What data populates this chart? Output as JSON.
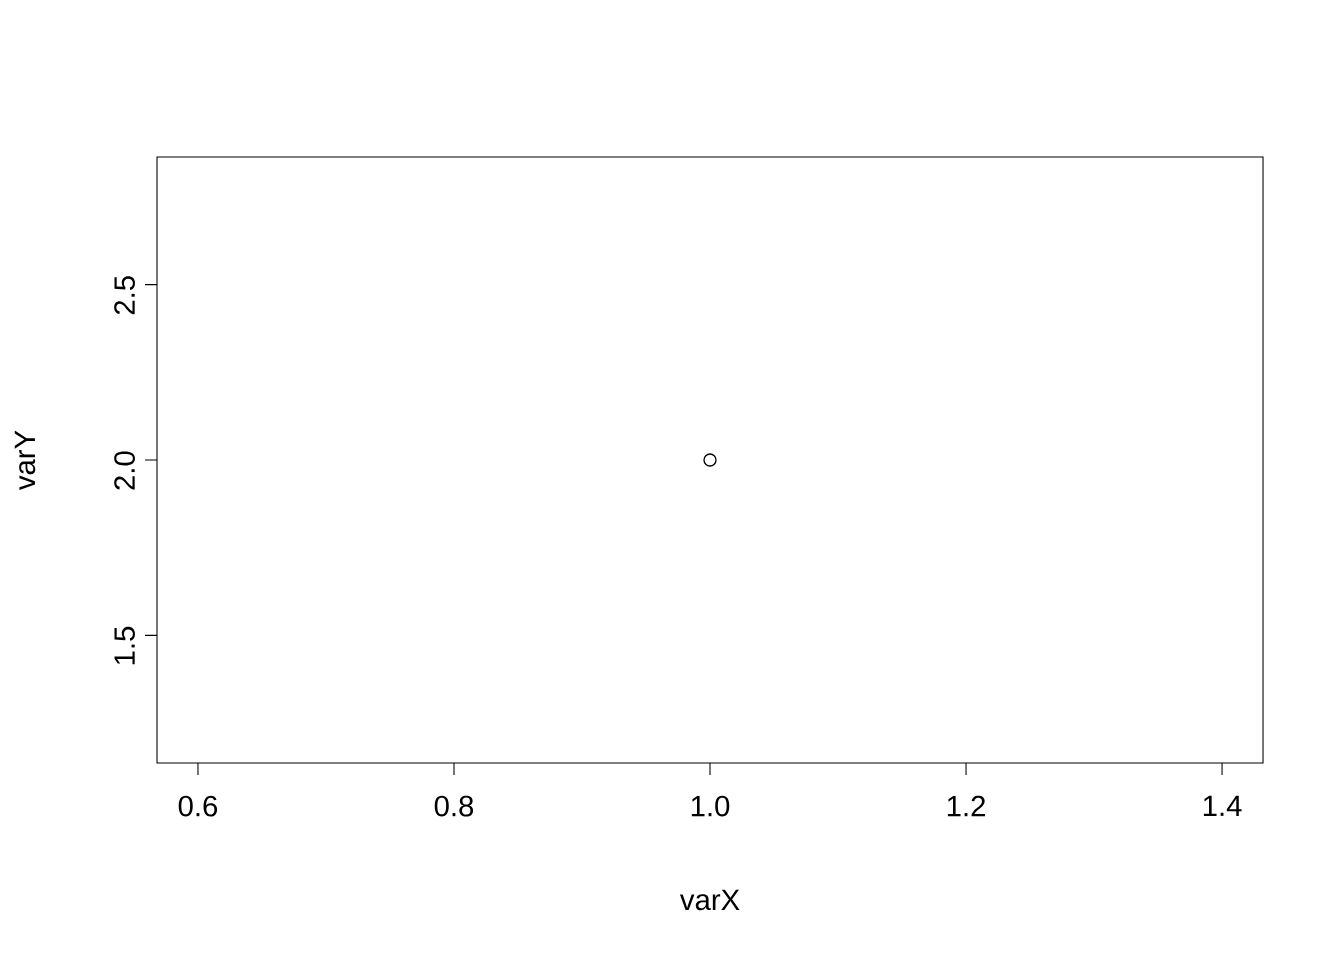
{
  "chart_data": {
    "type": "scatter",
    "xlabel": "varX",
    "ylabel": "varY",
    "x": [
      1
    ],
    "values": [
      2
    ],
    "color": "#000000",
    "marker": "circle",
    "xlim": [
      0.568,
      1.432
    ],
    "ylim": [
      1.136,
      2.864
    ],
    "xticks": [
      0.6,
      0.8,
      {
        "value": 1,
        "label": "1.0"
      },
      1.2,
      1.4
    ],
    "yticks": [
      1.5,
      {
        "value": 2,
        "label": "2.0"
      },
      2.5
    ]
  }
}
